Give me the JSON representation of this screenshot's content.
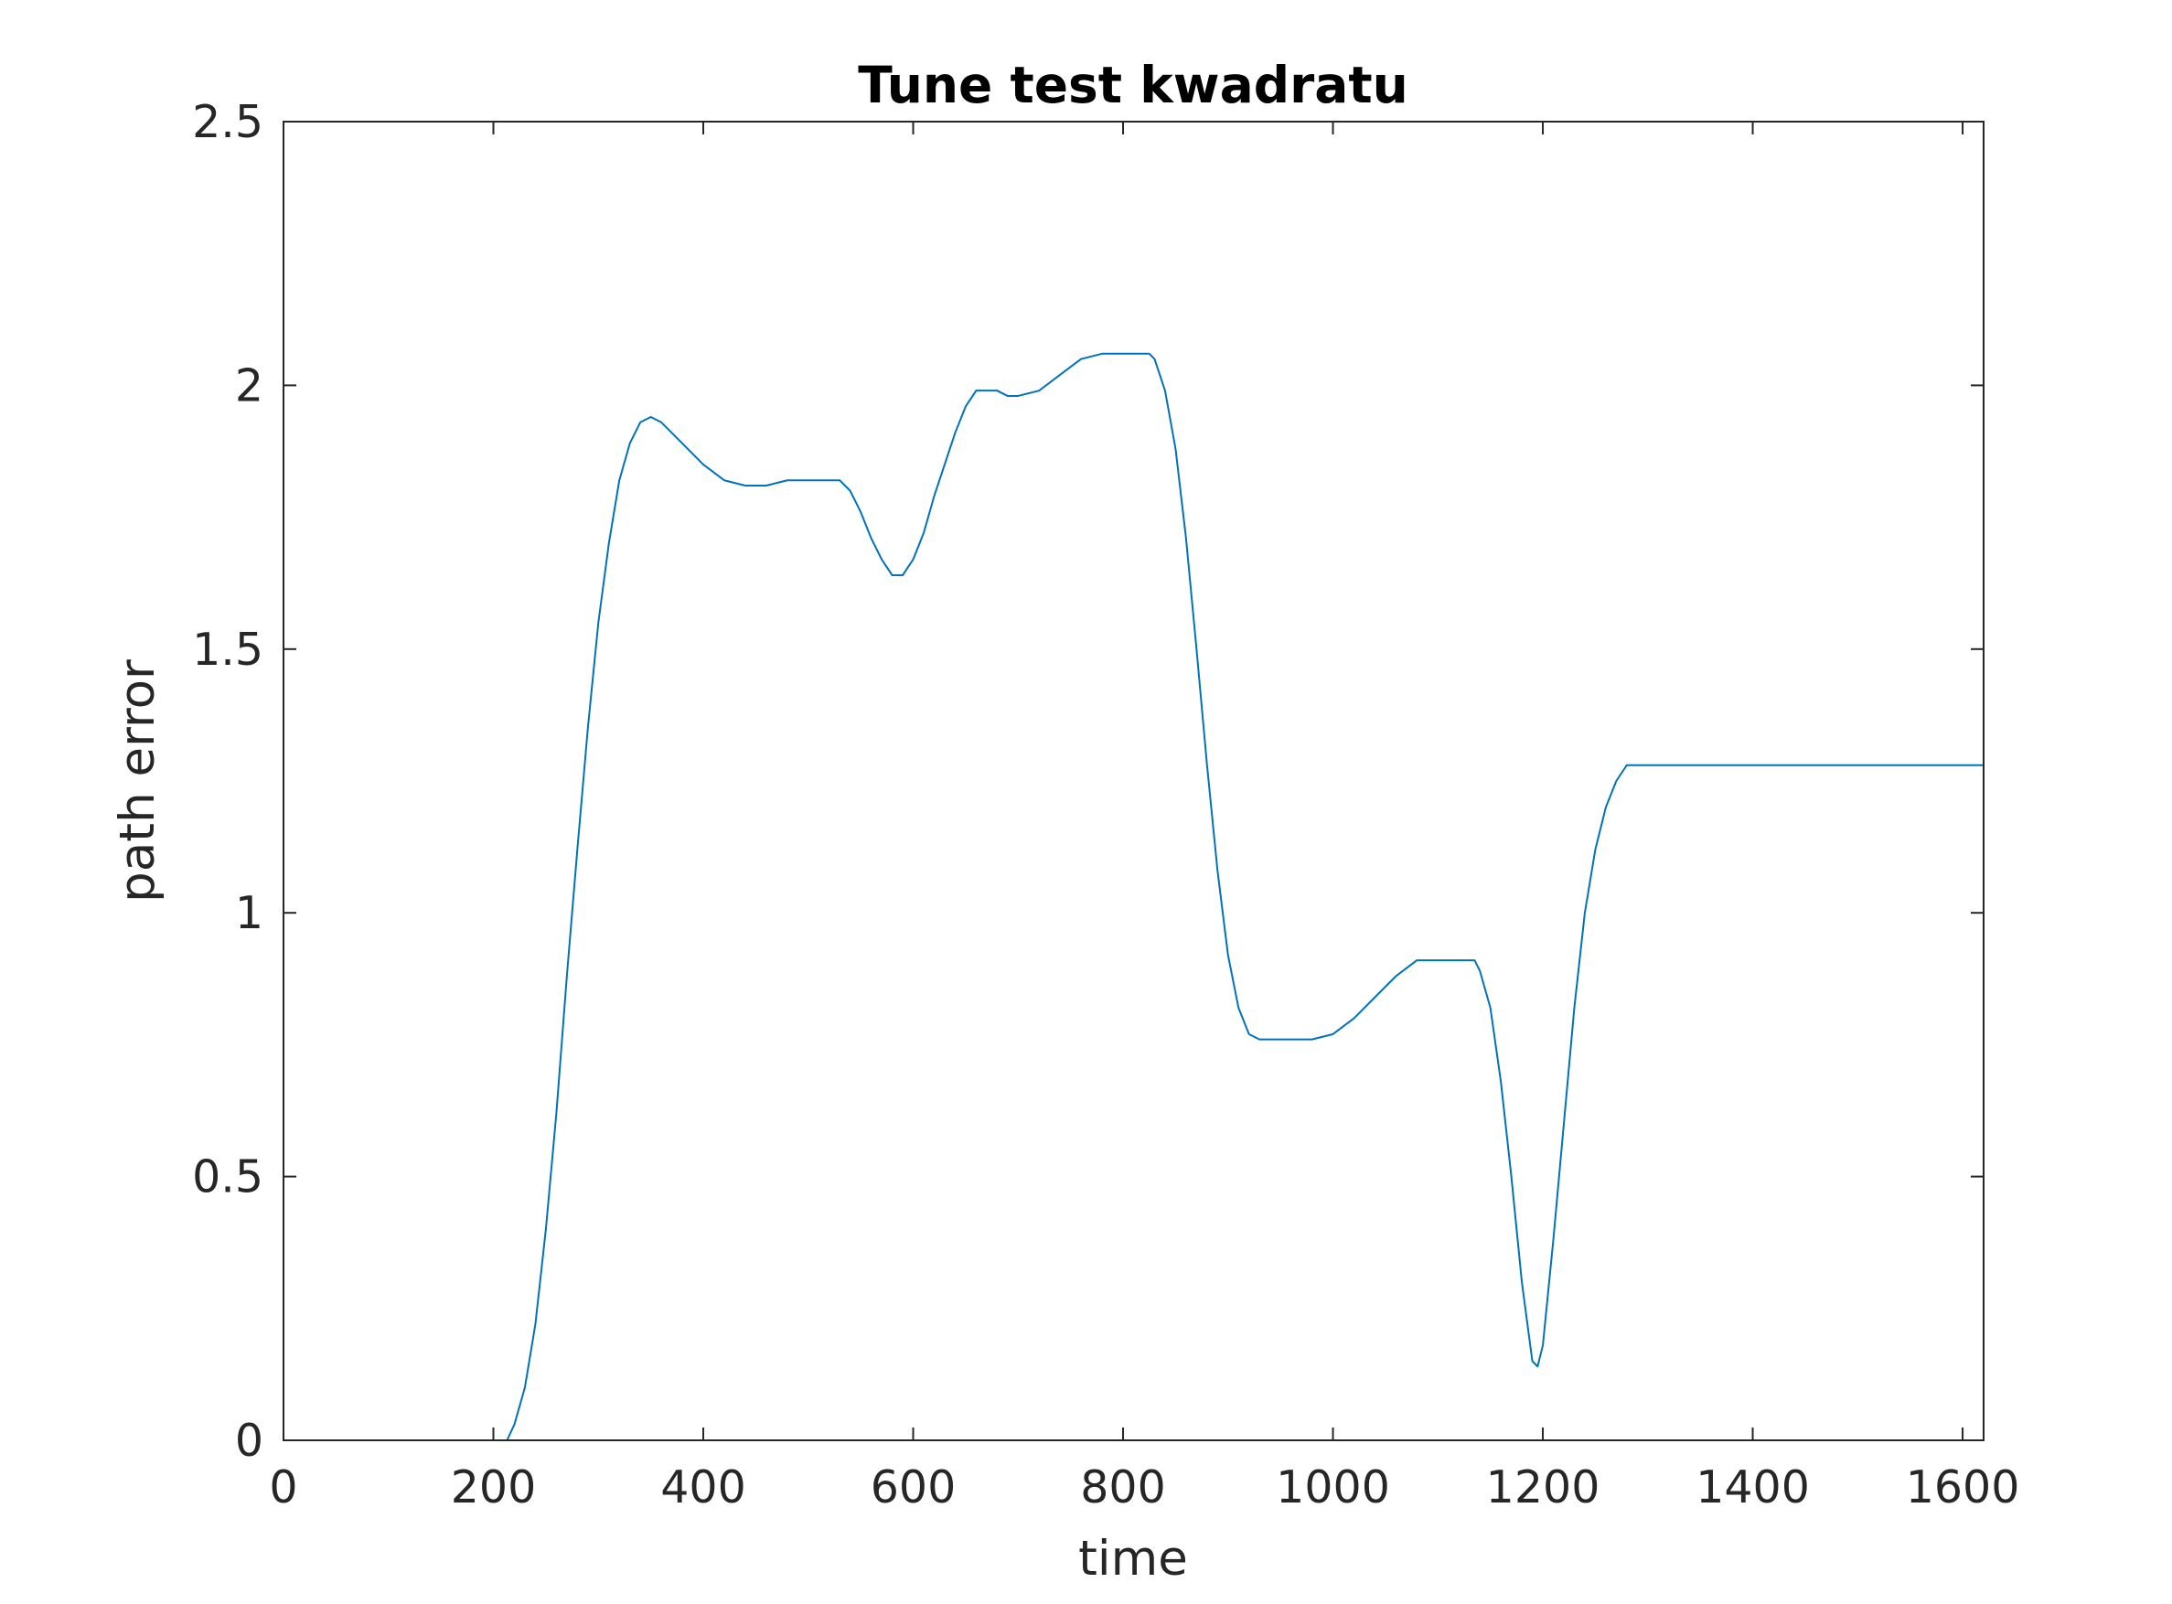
{
  "chart_data": {
    "type": "line",
    "title": "Tune test kwadratu",
    "xlabel": "time",
    "ylabel": "path error",
    "xlim": [
      0,
      1620
    ],
    "ylim": [
      0,
      2.5
    ],
    "xticks": [
      0,
      200,
      400,
      600,
      800,
      1000,
      1200,
      1400,
      1600
    ],
    "xtick_labels": [
      "0",
      "200",
      "400",
      "600",
      "800",
      "1000",
      "1200",
      "1400",
      "1600"
    ],
    "yticks": [
      0,
      0.5,
      1,
      1.5,
      2,
      2.5
    ],
    "ytick_labels": [
      "0",
      "0.5",
      "1",
      "1.5",
      "2",
      "2.5"
    ],
    "grid": false,
    "legend": "none",
    "line_color": "#0072BD",
    "series": [
      {
        "x": [
          0,
          100,
          200,
          213,
          220,
          230,
          240,
          250,
          260,
          270,
          280,
          290,
          300,
          310,
          320,
          330,
          340,
          350,
          360,
          370,
          380,
          400,
          420,
          440,
          460,
          480,
          500,
          530,
          540,
          550,
          560,
          570,
          580,
          590,
          600,
          610,
          620,
          630,
          640,
          650,
          660,
          670,
          680,
          690,
          700,
          720,
          740,
          760,
          780,
          800,
          825,
          830,
          840,
          850,
          860,
          870,
          880,
          890,
          900,
          910,
          920,
          930,
          940,
          950,
          960,
          970,
          980,
          1000,
          1020,
          1040,
          1060,
          1080,
          1090,
          1100,
          1120,
          1135,
          1140,
          1150,
          1160,
          1170,
          1180,
          1190,
          1195,
          1200,
          1210,
          1220,
          1230,
          1240,
          1250,
          1260,
          1270,
          1280,
          1290,
          1300,
          1400,
          1500,
          1620
        ],
        "y": [
          0,
          0,
          0,
          0,
          0.03,
          0.1,
          0.22,
          0.4,
          0.62,
          0.88,
          1.12,
          1.35,
          1.55,
          1.7,
          1.82,
          1.89,
          1.93,
          1.94,
          1.93,
          1.91,
          1.89,
          1.85,
          1.82,
          1.81,
          1.81,
          1.82,
          1.82,
          1.82,
          1.8,
          1.76,
          1.71,
          1.67,
          1.64,
          1.64,
          1.67,
          1.72,
          1.79,
          1.85,
          1.91,
          1.96,
          1.99,
          1.99,
          1.99,
          1.98,
          1.98,
          1.99,
          2.02,
          2.05,
          2.06,
          2.06,
          2.06,
          2.05,
          1.99,
          1.88,
          1.71,
          1.5,
          1.28,
          1.08,
          0.92,
          0.82,
          0.77,
          0.76,
          0.76,
          0.76,
          0.76,
          0.76,
          0.76,
          0.77,
          0.8,
          0.84,
          0.88,
          0.91,
          0.91,
          0.91,
          0.91,
          0.91,
          0.89,
          0.82,
          0.68,
          0.5,
          0.3,
          0.15,
          0.14,
          0.18,
          0.38,
          0.6,
          0.82,
          1.0,
          1.12,
          1.2,
          1.25,
          1.28,
          1.28,
          1.28,
          1.28,
          1.28,
          1.28
        ]
      }
    ]
  }
}
